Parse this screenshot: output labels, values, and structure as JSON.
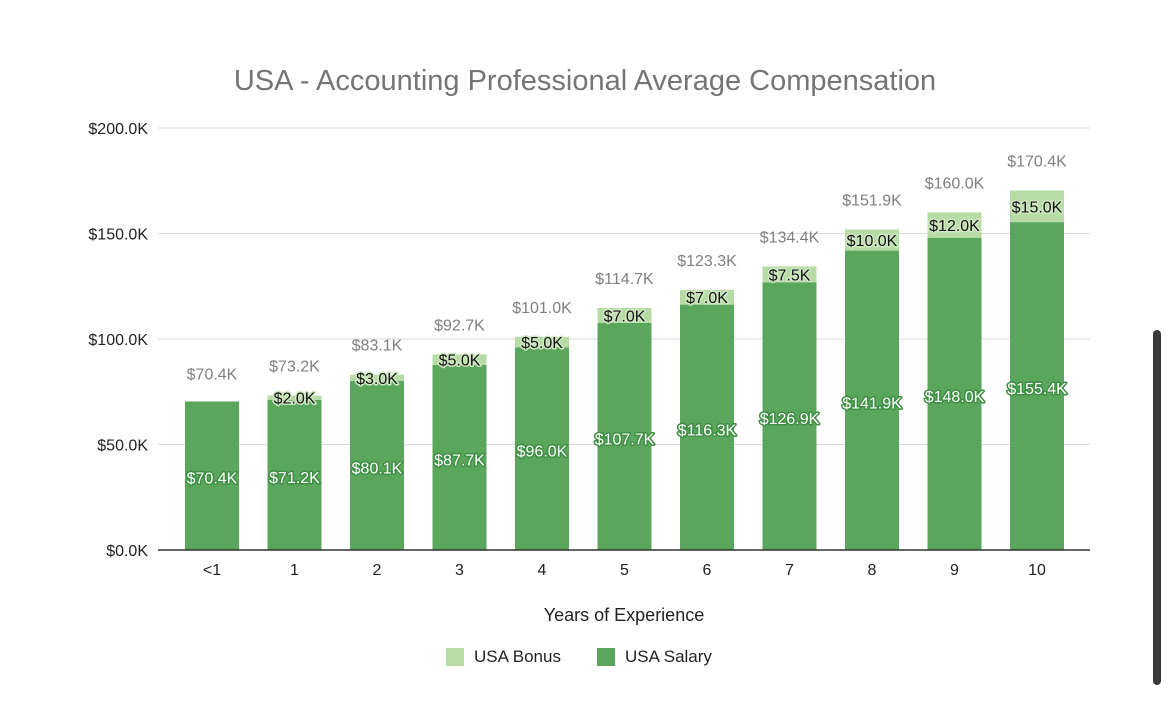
{
  "chart_data": {
    "type": "bar",
    "stacked": true,
    "title": "USA - Accounting Professional Average Compensation",
    "xlabel": "Years of Experience",
    "ylabel": "",
    "categories": [
      "<1",
      "1",
      "2",
      "3",
      "4",
      "5",
      "6",
      "7",
      "8",
      "9",
      "10"
    ],
    "ylim": [
      0,
      200000
    ],
    "yticks": [
      0,
      50000,
      100000,
      150000,
      200000
    ],
    "ytick_labels": [
      "$0.0K",
      "$50.0K",
      "$100.0K",
      "$150.0K",
      "$200.0K"
    ],
    "grid": true,
    "legend_position": "bottom",
    "series": [
      {
        "name": "USA Salary",
        "color": "#5aa65d",
        "values": [
          70400,
          71200,
          80100,
          87700,
          96000,
          107700,
          116300,
          126900,
          141900,
          148000,
          155400
        ],
        "labels": [
          "$70.4K",
          "$71.2K",
          "$80.1K",
          "$87.7K",
          "$96.0K",
          "$107.7K",
          "$116.3K",
          "$126.9K",
          "$141.9K",
          "$148.0K",
          "$155.4K"
        ]
      },
      {
        "name": "USA Bonus",
        "color": "#b7dba5",
        "values": [
          0,
          2000,
          3000,
          5000,
          5000,
          7000,
          7000,
          7500,
          10000,
          12000,
          15000
        ],
        "labels": [
          "",
          "$2.0K",
          "$3.0K",
          "$5.0K",
          "$5.0K",
          "$7.0K",
          "$7.0K",
          "$7.5K",
          "$10.0K",
          "$12.0K",
          "$15.0K"
        ]
      }
    ],
    "totals": [
      70400,
      73200,
      83100,
      92700,
      101000,
      114700,
      123300,
      134400,
      151900,
      160000,
      170400
    ],
    "total_labels": [
      "$70.4K",
      "$73.2K",
      "$83.1K",
      "$92.7K",
      "$101.0K",
      "$114.7K",
      "$123.3K",
      "$134.4K",
      "$151.9K",
      "$160.0K",
      "$170.4K"
    ],
    "legend": [
      {
        "name": "USA Bonus",
        "color": "#b7dba5"
      },
      {
        "name": "USA Salary",
        "color": "#5aa65d"
      }
    ]
  }
}
